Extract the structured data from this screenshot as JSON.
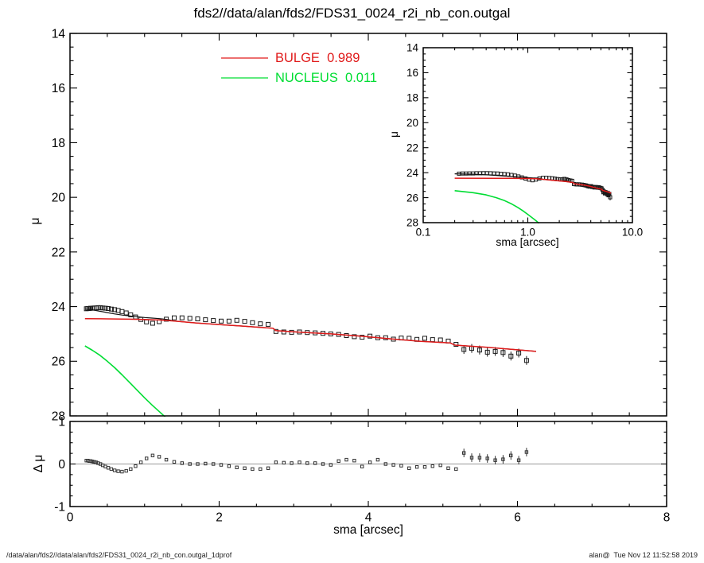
{
  "title": "fds2//data/alan/fds2/FDS31_0024_r2i_nb_con.outgal",
  "legend": {
    "items": [
      {
        "label": "BULGE  0.989",
        "color": "#e01a1a"
      },
      {
        "label": "NUCLEUS  0.011",
        "color": "#00dd33"
      }
    ]
  },
  "footer": {
    "left": "/data/alan/fds2//data/alan/fds2/FDS31_0024_r2i_nb_con.outgal_1dprof",
    "right": "alan@  Tue Nov 12 11:52:58 2019"
  },
  "chart_data": [
    {
      "id": "main-profile",
      "type": "scatter",
      "title": "fds2//data/alan/fds2/FDS31_0024_r2i_nb_con.outgal",
      "xlabel": "",
      "ylabel": "μ",
      "xlim": [
        0,
        8
      ],
      "ylim": [
        28,
        14
      ],
      "xticks": [
        0,
        2,
        4,
        6,
        8
      ],
      "yticks": [
        14,
        16,
        18,
        20,
        22,
        24,
        26,
        28
      ],
      "ytick_labels": [
        "14",
        "16",
        "18",
        "20",
        "22",
        "24",
        "26",
        "28"
      ],
      "x_minor_step": 0.5,
      "y_minor_step": 0.5,
      "grid": false,
      "series": [
        {
          "name": "observed",
          "marker": "square",
          "color": "#1a1a1a",
          "error": 0.06,
          "error_x_min": 5.25,
          "points": [
            [
              0.22,
              24.08
            ],
            [
              0.238,
              24.07
            ],
            [
              0.257,
              24.07
            ],
            [
              0.277,
              24.06
            ],
            [
              0.299,
              24.06
            ],
            [
              0.323,
              24.05
            ],
            [
              0.349,
              24.05
            ],
            [
              0.377,
              24.04
            ],
            [
              0.407,
              24.04
            ],
            [
              0.44,
              24.05
            ],
            [
              0.475,
              24.06
            ],
            [
              0.513,
              24.07
            ],
            [
              0.554,
              24.09
            ],
            [
              0.598,
              24.11
            ],
            [
              0.646,
              24.14
            ],
            [
              0.698,
              24.18
            ],
            [
              0.754,
              24.23
            ],
            [
              0.814,
              24.3
            ],
            [
              0.879,
              24.38
            ],
            [
              0.95,
              24.47
            ],
            [
              1.026,
              24.56
            ],
            [
              1.108,
              24.61
            ],
            [
              1.196,
              24.55
            ],
            [
              1.292,
              24.46
            ],
            [
              1.397,
              24.41
            ],
            [
              1.502,
              24.41
            ],
            [
              1.607,
              24.43
            ],
            [
              1.712,
              24.45
            ],
            [
              1.817,
              24.48
            ],
            [
              1.922,
              24.51
            ],
            [
              2.027,
              24.53
            ],
            [
              2.132,
              24.53
            ],
            [
              2.237,
              24.5
            ],
            [
              2.342,
              24.54
            ],
            [
              2.447,
              24.59
            ],
            [
              2.552,
              24.63
            ],
            [
              2.657,
              24.65
            ],
            [
              2.762,
              24.91
            ],
            [
              2.867,
              24.93
            ],
            [
              2.972,
              24.94
            ],
            [
              3.077,
              24.93
            ],
            [
              3.182,
              24.95
            ],
            [
              3.287,
              24.96
            ],
            [
              3.392,
              24.98
            ],
            [
              3.497,
              25.0
            ],
            [
              3.602,
              25.02
            ],
            [
              3.707,
              25.06
            ],
            [
              3.812,
              25.1
            ],
            [
              3.917,
              25.12
            ],
            [
              4.022,
              25.08
            ],
            [
              4.127,
              25.14
            ],
            [
              4.232,
              25.14
            ],
            [
              4.337,
              25.19
            ],
            [
              4.442,
              25.15
            ],
            [
              4.547,
              25.16
            ],
            [
              4.652,
              25.2
            ],
            [
              4.757,
              25.16
            ],
            [
              4.862,
              25.21
            ],
            [
              4.967,
              25.22
            ],
            [
              5.072,
              25.26
            ],
            [
              5.177,
              25.38
            ],
            [
              5.282,
              25.57
            ],
            [
              5.387,
              25.53
            ],
            [
              5.492,
              25.59
            ],
            [
              5.597,
              25.67
            ],
            [
              5.702,
              25.64
            ],
            [
              5.807,
              25.68
            ],
            [
              5.912,
              25.81
            ],
            [
              6.017,
              25.7
            ],
            [
              6.122,
              25.97
            ]
          ]
        },
        {
          "name": "total-model",
          "type": "line",
          "color": "#111111",
          "width": 1.2,
          "points": [
            [
              0.2,
              24.09
            ],
            [
              0.3,
              24.12
            ],
            [
              0.4,
              24.17
            ],
            [
              0.5,
              24.22
            ],
            [
              0.6,
              24.27
            ],
            [
              0.7,
              24.31
            ],
            [
              0.8,
              24.34
            ],
            [
              0.9,
              24.37
            ],
            [
              1.0,
              24.4
            ],
            [
              1.1,
              24.42
            ],
            [
              1.2,
              24.44
            ],
            [
              1.3,
              24.47
            ],
            [
              1.4,
              24.53
            ],
            [
              1.7,
              24.6
            ],
            [
              1.95,
              24.65
            ],
            [
              2.3,
              24.71
            ],
            [
              2.6,
              24.77
            ],
            [
              2.72,
              24.79
            ],
            [
              2.76,
              24.88
            ],
            [
              3.1,
              24.94
            ],
            [
              3.5,
              25.0
            ],
            [
              3.9,
              25.08
            ],
            [
              4.3,
              25.18
            ],
            [
              4.7,
              25.27
            ],
            [
              5.1,
              25.33
            ],
            [
              5.16,
              25.41
            ],
            [
              5.6,
              25.49
            ],
            [
              6.0,
              25.58
            ],
            [
              6.25,
              25.64
            ]
          ]
        },
        {
          "name": "BULGE",
          "type": "line",
          "color": "#e01a1a",
          "width": 1.5,
          "weight": 0.989,
          "points": [
            [
              0.2,
              24.44
            ],
            [
              0.5,
              24.45
            ],
            [
              0.8,
              24.46
            ],
            [
              1.0,
              24.47
            ],
            [
              1.2,
              24.49
            ],
            [
              1.4,
              24.53
            ],
            [
              1.7,
              24.6
            ],
            [
              1.95,
              24.65
            ],
            [
              2.3,
              24.71
            ],
            [
              2.6,
              24.77
            ],
            [
              2.72,
              24.79
            ],
            [
              2.76,
              24.88
            ],
            [
              3.1,
              24.94
            ],
            [
              3.5,
              25.0
            ],
            [
              3.9,
              25.08
            ],
            [
              4.3,
              25.18
            ],
            [
              4.7,
              25.27
            ],
            [
              5.1,
              25.33
            ],
            [
              5.16,
              25.41
            ],
            [
              5.6,
              25.49
            ],
            [
              6.0,
              25.58
            ],
            [
              6.25,
              25.64
            ]
          ]
        },
        {
          "name": "NUCLEUS",
          "type": "line",
          "color": "#00dd33",
          "width": 1.6,
          "weight": 0.011,
          "points": [
            [
              0.2,
              25.44
            ],
            [
              0.3,
              25.6
            ],
            [
              0.4,
              25.78
            ],
            [
              0.5,
              26.0
            ],
            [
              0.6,
              26.24
            ],
            [
              0.7,
              26.5
            ],
            [
              0.8,
              26.78
            ],
            [
              0.9,
              27.06
            ],
            [
              1.0,
              27.34
            ],
            [
              1.1,
              27.6
            ],
            [
              1.2,
              27.85
            ],
            [
              1.28,
              28.05
            ]
          ]
        }
      ]
    },
    {
      "id": "inset-log-profile",
      "type": "scatter",
      "xlabel": "sma [arcsec]",
      "ylabel": "μ",
      "xscale": "log",
      "xlim": [
        0.1,
        10
      ],
      "ylim": [
        28,
        14
      ],
      "xticks": [
        0.1,
        1,
        10
      ],
      "xtick_labels": [
        "0.1",
        "1.0",
        "10.0"
      ],
      "yticks": [
        14,
        16,
        18,
        20,
        22,
        24,
        26,
        28
      ],
      "ytick_labels": [
        "14",
        "16",
        "18",
        "20",
        "22",
        "24",
        "26",
        "28"
      ],
      "y_minor_step": 0.5,
      "grid": false,
      "series_from": "main-profile"
    },
    {
      "id": "residual",
      "type": "scatter",
      "xlabel": "sma [arcsec]",
      "ylabel": "Δ μ",
      "xlim": [
        0,
        8
      ],
      "ylim": [
        -1,
        1
      ],
      "xticks": [
        0,
        2,
        4,
        6,
        8
      ],
      "xtick_labels": [
        "0",
        "2",
        "4",
        "6",
        "8"
      ],
      "yticks": [
        -1,
        0,
        1
      ],
      "ytick_labels": [
        "-1",
        "0",
        "1"
      ],
      "x_minor_step": 0.5,
      "y_minor_step": 0.25,
      "zero_line": true,
      "grid": false,
      "series": [
        {
          "name": "delta-mu",
          "marker": "square",
          "color": "#333333",
          "error": 0.05,
          "error_x_min": 5.25,
          "points": [
            [
              0.22,
              0.08
            ],
            [
              0.238,
              0.08
            ],
            [
              0.257,
              0.07
            ],
            [
              0.277,
              0.07
            ],
            [
              0.299,
              0.06
            ],
            [
              0.323,
              0.05
            ],
            [
              0.349,
              0.04
            ],
            [
              0.377,
              0.02
            ],
            [
              0.407,
              0.0
            ],
            [
              0.44,
              -0.03
            ],
            [
              0.475,
              -0.06
            ],
            [
              0.513,
              -0.09
            ],
            [
              0.554,
              -0.12
            ],
            [
              0.598,
              -0.15
            ],
            [
              0.646,
              -0.17
            ],
            [
              0.698,
              -0.18
            ],
            [
              0.754,
              -0.16
            ],
            [
              0.814,
              -0.12
            ],
            [
              0.879,
              -0.05
            ],
            [
              0.95,
              0.04
            ],
            [
              1.026,
              0.13
            ],
            [
              1.108,
              0.2
            ],
            [
              1.196,
              0.17
            ],
            [
              1.292,
              0.1
            ],
            [
              1.397,
              0.05
            ],
            [
              1.502,
              0.02
            ],
            [
              1.607,
              0.0
            ],
            [
              1.712,
              0.0
            ],
            [
              1.817,
              0.01
            ],
            [
              1.922,
              0.0
            ],
            [
              2.027,
              -0.02
            ],
            [
              2.132,
              -0.05
            ],
            [
              2.237,
              -0.08
            ],
            [
              2.342,
              -0.1
            ],
            [
              2.447,
              -0.12
            ],
            [
              2.552,
              -0.12
            ],
            [
              2.657,
              -0.1
            ],
            [
              2.762,
              0.04
            ],
            [
              2.867,
              0.03
            ],
            [
              2.972,
              0.02
            ],
            [
              3.077,
              0.04
            ],
            [
              3.182,
              0.02
            ],
            [
              3.287,
              0.02
            ],
            [
              3.392,
              0.0
            ],
            [
              3.497,
              -0.02
            ],
            [
              3.602,
              0.07
            ],
            [
              3.707,
              0.1
            ],
            [
              3.812,
              0.08
            ],
            [
              3.917,
              -0.06
            ],
            [
              4.022,
              0.04
            ],
            [
              4.127,
              0.1
            ],
            [
              4.232,
              0.0
            ],
            [
              4.337,
              -0.02
            ],
            [
              4.442,
              -0.04
            ],
            [
              4.547,
              -0.1
            ],
            [
              4.652,
              -0.07
            ],
            [
              4.757,
              -0.07
            ],
            [
              4.862,
              -0.05
            ],
            [
              4.967,
              -0.03
            ],
            [
              5.072,
              -0.1
            ],
            [
              5.177,
              -0.12
            ],
            [
              5.282,
              0.26
            ],
            [
              5.387,
              0.15
            ],
            [
              5.492,
              0.15
            ],
            [
              5.597,
              0.13
            ],
            [
              5.702,
              0.09
            ],
            [
              5.807,
              0.11
            ],
            [
              5.912,
              0.2
            ],
            [
              6.017,
              0.09
            ],
            [
              6.122,
              0.28
            ]
          ]
        }
      ]
    }
  ]
}
